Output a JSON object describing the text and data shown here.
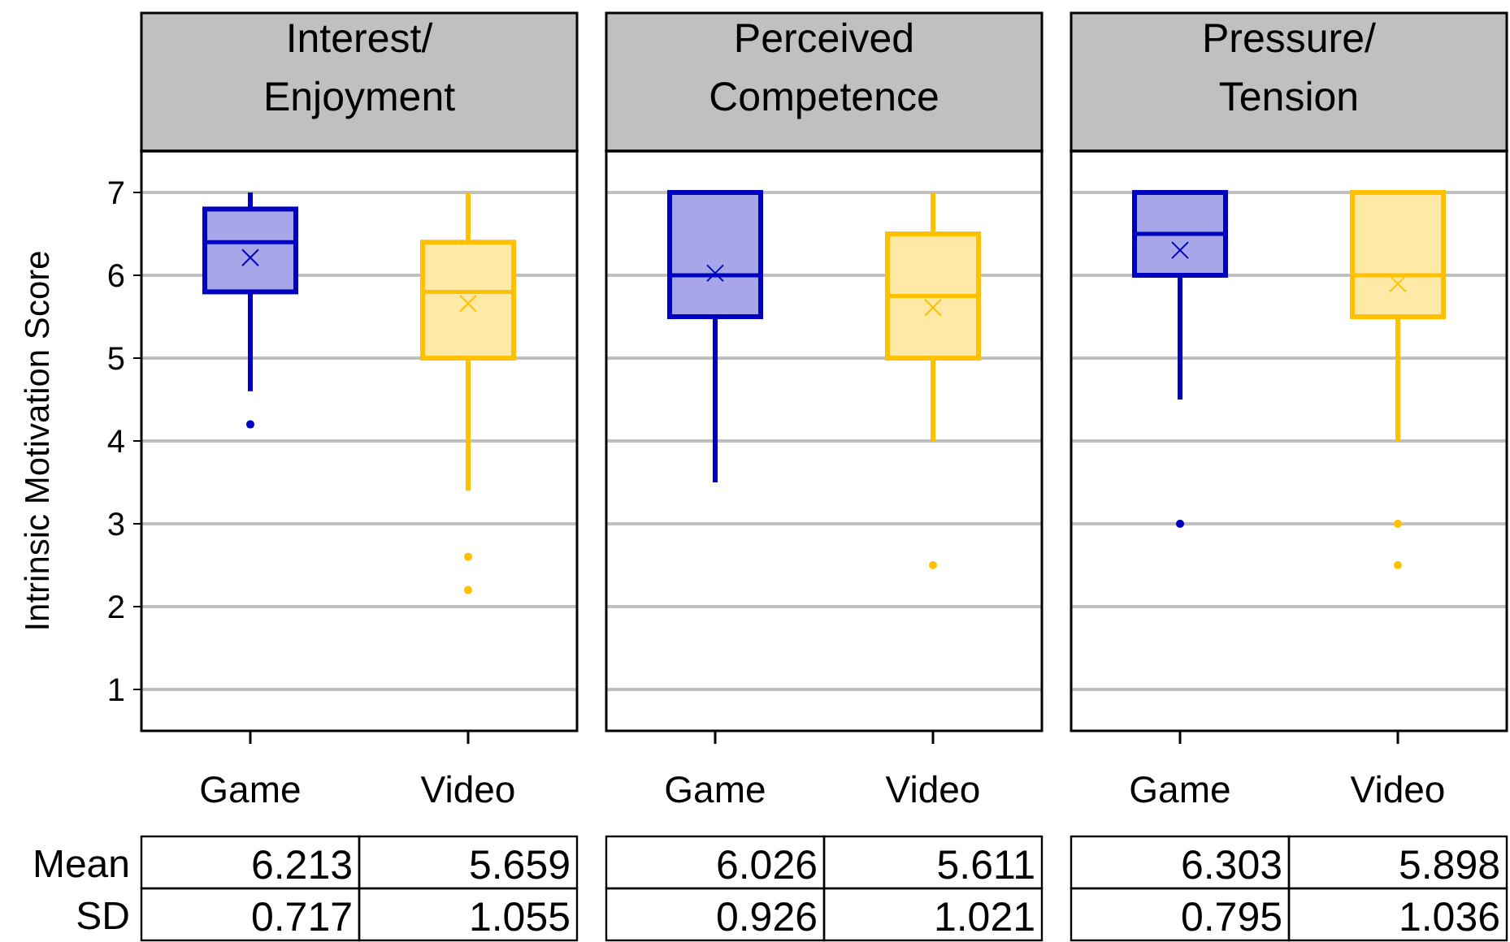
{
  "chart_data": [
    {
      "type": "box",
      "title": "Interest/\nEnjoyment",
      "ylabel": "Intrinsic Motivation Score",
      "categories": [
        "Game",
        "Video"
      ],
      "colors": [
        "#0000c0",
        "#ffc000"
      ],
      "ylim": [
        0.5,
        7.5
      ],
      "yticks": [
        1,
        2,
        3,
        4,
        5,
        6,
        7
      ],
      "grid": "y",
      "boxes": [
        {
          "low": 4.6,
          "q1": 5.8,
          "median": 6.4,
          "q3": 6.8,
          "high": 7,
          "mean": 6.213,
          "outliers": [
            4.2
          ]
        },
        {
          "low": 3.4,
          "q1": 5.0,
          "median": 5.8,
          "q3": 6.4,
          "high": 7,
          "mean": 5.659,
          "outliers": [
            2.6,
            2.2
          ]
        }
      ],
      "annotations": [
        "Mean",
        "SD",
        "6.213",
        "5.659",
        "0.717",
        "1.055"
      ]
    },
    {
      "type": "box",
      "title": "Perceived\nCompetence",
      "categories": [
        "Game",
        "Video"
      ],
      "colors": [
        "#0000c0",
        "#ffc000"
      ],
      "ylim": [
        0.5,
        7.5
      ],
      "yticks": [
        1,
        2,
        3,
        4,
        5,
        6,
        7
      ],
      "grid": "y",
      "tick_labels": "x",
      "boxes": [
        {
          "low": 3.5,
          "q1": 5.5,
          "median": 6,
          "q3": 7,
          "high": 7,
          "mean": 6.026
        },
        {
          "low": 4,
          "q1": 5,
          "median": 5.75,
          "q3": 6.5,
          "high": 7,
          "mean": 5.611,
          "outliers": [
            2.5
          ]
        }
      ],
      "annotations": [
        "6.026",
        "5.611",
        "0.926",
        "1.021"
      ]
    },
    {
      "type": "box",
      "title": "Pressure/\nTension",
      "categories": [
        "Game",
        "Video"
      ],
      "colors": [
        "#0000c0",
        "#ffc000"
      ],
      "ylim": [
        0.5,
        7.5
      ],
      "yticks": [
        1,
        2,
        3,
        4,
        5,
        6,
        7
      ],
      "grid": "y",
      "tick_labels": "x",
      "boxes": [
        {
          "low": 4.5,
          "q1": 6,
          "median": 6.5,
          "q3": 7,
          "high": 7,
          "mean": 6.303,
          "outliers": [
            3
          ]
        },
        {
          "low": 4,
          "q1": 5.5,
          "median": 6,
          "q3": 7,
          "high": 7,
          "mean": 5.898,
          "outliers": [
            3,
            2.5
          ]
        }
      ],
      "annotations": [
        "6.303",
        "5.898",
        "0.795",
        "1.036"
      ]
    }
  ]
}
